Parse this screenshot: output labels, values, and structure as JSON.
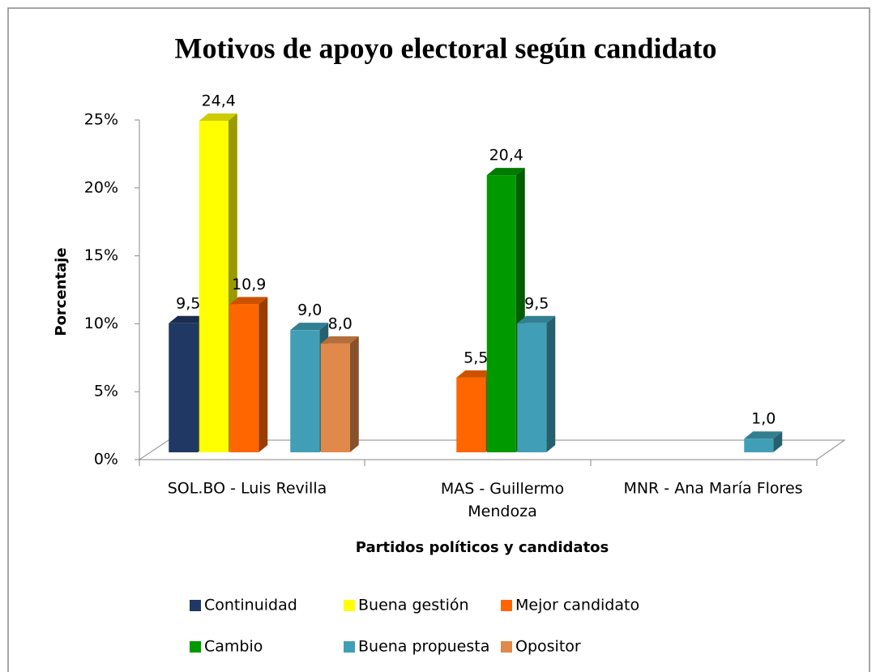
{
  "chart_data": {
    "type": "bar3d",
    "title": "Motivos de apoyo electoral según candidato",
    "x_label": "Partidos políticos y candidatos",
    "y_label": "Porcentaje",
    "categories": [
      "SOL.BO - Luis Revilla",
      "MAS - Guillermo Mendoza",
      "MNR - Ana María Flores"
    ],
    "series": [
      {
        "name": "Continuidad",
        "color": "#1f3864",
        "values": [
          9.5,
          null,
          null
        ],
        "value_labels": [
          "9,5",
          null,
          null
        ]
      },
      {
        "name": "Buena gestión",
        "color": "#ffff00",
        "values": [
          24.4,
          null,
          null
        ],
        "value_labels": [
          "24,4",
          null,
          null
        ]
      },
      {
        "name": "Mejor candidato",
        "color": "#ff6600",
        "values": [
          10.9,
          5.5,
          null
        ],
        "value_labels": [
          "10,9",
          "5,5",
          null
        ]
      },
      {
        "name": "Cambio",
        "color": "#009900",
        "values": [
          null,
          20.4,
          null
        ],
        "value_labels": [
          null,
          "20,4",
          null
        ]
      },
      {
        "name": "Buena propuesta",
        "color": "#409fb6",
        "values": [
          9.0,
          9.5,
          1.0
        ],
        "value_labels": [
          "9,0",
          "9,5",
          "1,0"
        ]
      },
      {
        "name": "Opositor",
        "color": "#e0894a",
        "values": [
          8.0,
          null,
          null
        ],
        "value_labels": [
          "8,0",
          null,
          null
        ]
      }
    ],
    "ylim": [
      0,
      25
    ],
    "yticks": [
      {
        "value": 0,
        "label": "0%"
      },
      {
        "value": 5,
        "label": "5%"
      },
      {
        "value": 10,
        "label": "10%"
      },
      {
        "value": 15,
        "label": "15%"
      },
      {
        "value": 20,
        "label": "20%"
      },
      {
        "value": 25,
        "label": "25%"
      }
    ],
    "legend": "bottom"
  }
}
